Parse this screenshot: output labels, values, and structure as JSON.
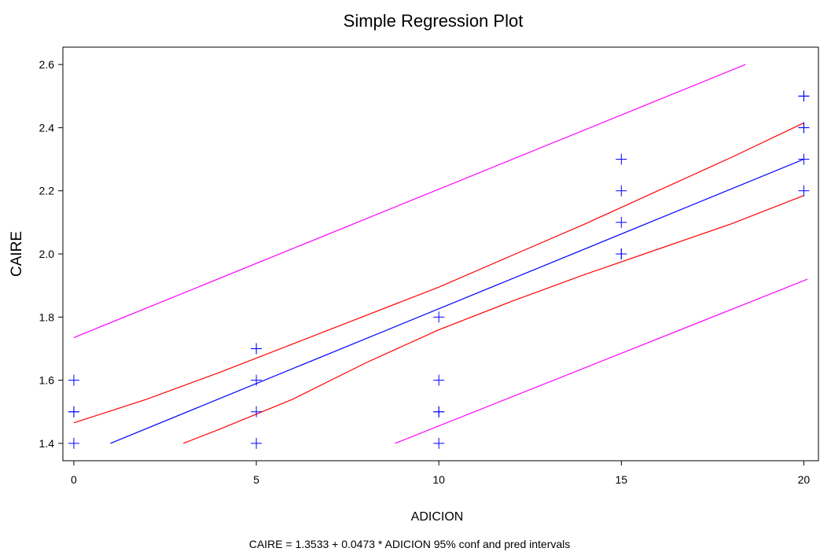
{
  "chart_data": {
    "type": "scatter",
    "title": "Simple Regression Plot",
    "xlabel": "ADICION",
    "ylabel": "CAIRE",
    "footnote": "CAIRE = 1.3533 + 0.0473 * ADICION   95% conf and pred intervals",
    "xlim": [
      -0.3,
      20.4
    ],
    "ylim": [
      1.345,
      2.655
    ],
    "x_ticks": [
      0,
      5,
      10,
      15,
      20
    ],
    "y_ticks": [
      1.4,
      1.6,
      1.8,
      2.0,
      2.2,
      2.4,
      2.6
    ],
    "x_tick_labels": [
      "0",
      "5",
      "10",
      "15",
      "20"
    ],
    "y_tick_labels": [
      "1.4",
      "1.6",
      "1.8",
      "2.0",
      "2.2",
      "2.4",
      "2.6"
    ],
    "grid": false,
    "colors": {
      "points": "#0000ff",
      "fit": "#0000ff",
      "confidence": "#ff0000",
      "prediction": "#ff00ff"
    },
    "points": [
      {
        "x": 0,
        "y": 1.4
      },
      {
        "x": 0,
        "y": 1.5
      },
      {
        "x": 0,
        "y": 1.5
      },
      {
        "x": 0,
        "y": 1.6
      },
      {
        "x": 5,
        "y": 1.4
      },
      {
        "x": 5,
        "y": 1.5
      },
      {
        "x": 5,
        "y": 1.6
      },
      {
        "x": 5,
        "y": 1.7
      },
      {
        "x": 5,
        "y": 1.7
      },
      {
        "x": 10,
        "y": 1.4
      },
      {
        "x": 10,
        "y": 1.5
      },
      {
        "x": 10,
        "y": 1.5
      },
      {
        "x": 10,
        "y": 1.6
      },
      {
        "x": 10,
        "y": 1.8
      },
      {
        "x": 15,
        "y": 2.0
      },
      {
        "x": 15,
        "y": 2.0
      },
      {
        "x": 15,
        "y": 2.1
      },
      {
        "x": 15,
        "y": 2.2
      },
      {
        "x": 15,
        "y": 2.3
      },
      {
        "x": 20,
        "y": 2.2
      },
      {
        "x": 20,
        "y": 2.3
      },
      {
        "x": 20,
        "y": 2.4
      },
      {
        "x": 20,
        "y": 2.4
      },
      {
        "x": 20,
        "y": 2.5
      },
      {
        "x": 20,
        "y": 2.5
      }
    ],
    "fit_line": [
      {
        "x": 1.0,
        "y": 1.4
      },
      {
        "x": 20.0,
        "y": 2.3
      }
    ],
    "conf_upper": [
      {
        "x": 0,
        "y": 1.465
      },
      {
        "x": 2,
        "y": 1.54
      },
      {
        "x": 4,
        "y": 1.625
      },
      {
        "x": 6,
        "y": 1.715
      },
      {
        "x": 8,
        "y": 1.805
      },
      {
        "x": 10,
        "y": 1.895
      },
      {
        "x": 12,
        "y": 1.995
      },
      {
        "x": 14,
        "y": 2.095
      },
      {
        "x": 16,
        "y": 2.2
      },
      {
        "x": 18,
        "y": 2.305
      },
      {
        "x": 20,
        "y": 2.415
      }
    ],
    "conf_lower": [
      {
        "x": 3,
        "y": 1.4
      },
      {
        "x": 4,
        "y": 1.445
      },
      {
        "x": 6,
        "y": 1.54
      },
      {
        "x": 8,
        "y": 1.655
      },
      {
        "x": 10,
        "y": 1.76
      },
      {
        "x": 12,
        "y": 1.85
      },
      {
        "x": 14,
        "y": 1.935
      },
      {
        "x": 16,
        "y": 2.015
      },
      {
        "x": 18,
        "y": 2.095
      },
      {
        "x": 20,
        "y": 2.185
      }
    ],
    "pred_upper": [
      {
        "x": 0,
        "y": 1.735
      },
      {
        "x": 18.4,
        "y": 2.6
      }
    ],
    "pred_lower": [
      {
        "x": 8.8,
        "y": 1.4
      },
      {
        "x": 20.1,
        "y": 1.92
      }
    ]
  }
}
